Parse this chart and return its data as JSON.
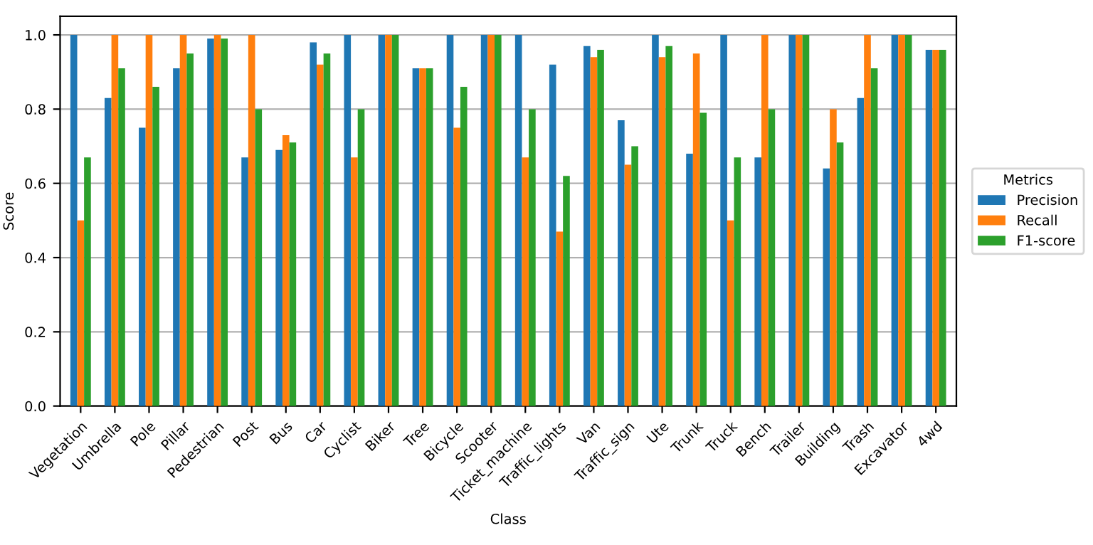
{
  "chart_data": {
    "type": "bar",
    "xlabel": "Class",
    "ylabel": "Score",
    "legend_title": "Metrics",
    "legend": "right",
    "categories": [
      "Vegetation",
      "Umbrella",
      "Pole",
      "Pillar",
      "Pedestrian",
      "Post",
      "Bus",
      "Car",
      "Cyclist",
      "Biker",
      "Tree",
      "Bicycle",
      "Scooter",
      "Ticket_machine",
      "Traffic_lights",
      "Van",
      "Traffic_sign",
      "Ute",
      "Trunk",
      "Truck",
      "Bench",
      "Trailer",
      "Building",
      "Trash",
      "Excavator",
      "4wd"
    ],
    "series": [
      {
        "name": "Precision",
        "color": "#1f77b4",
        "values": [
          1.0,
          0.83,
          0.75,
          0.91,
          0.99,
          0.67,
          0.69,
          0.98,
          1.0,
          1.0,
          0.91,
          1.0,
          1.0,
          1.0,
          0.92,
          0.97,
          0.77,
          1.0,
          0.68,
          1.0,
          0.67,
          1.0,
          0.64,
          0.83,
          1.0,
          0.96
        ]
      },
      {
        "name": "Recall",
        "color": "#ff7f0e",
        "values": [
          0.5,
          1.0,
          1.0,
          1.0,
          1.0,
          1.0,
          0.73,
          0.92,
          0.67,
          1.0,
          0.91,
          0.75,
          1.0,
          0.67,
          0.47,
          0.94,
          0.65,
          0.94,
          0.95,
          0.5,
          1.0,
          1.0,
          0.8,
          1.0,
          1.0,
          0.96
        ]
      },
      {
        "name": "F1-score",
        "color": "#2ca02c",
        "values": [
          0.67,
          0.91,
          0.86,
          0.95,
          0.99,
          0.8,
          0.71,
          0.95,
          0.8,
          1.0,
          0.91,
          0.86,
          1.0,
          0.8,
          0.62,
          0.96,
          0.7,
          0.97,
          0.79,
          0.67,
          0.8,
          1.0,
          0.71,
          0.91,
          1.0,
          0.96
        ]
      }
    ],
    "ylim": [
      0,
      1.05
    ],
    "yticks": [
      {
        "value": 0,
        "label": "0.0"
      },
      {
        "value": 0.2,
        "label": "0.2"
      },
      {
        "value": 0.4,
        "label": "0.4"
      },
      {
        "value": 0.6,
        "label": "0.6"
      },
      {
        "value": 0.8,
        "label": "0.8"
      },
      {
        "value": 1.0,
        "label": "1.0"
      }
    ],
    "grid": "y"
  }
}
